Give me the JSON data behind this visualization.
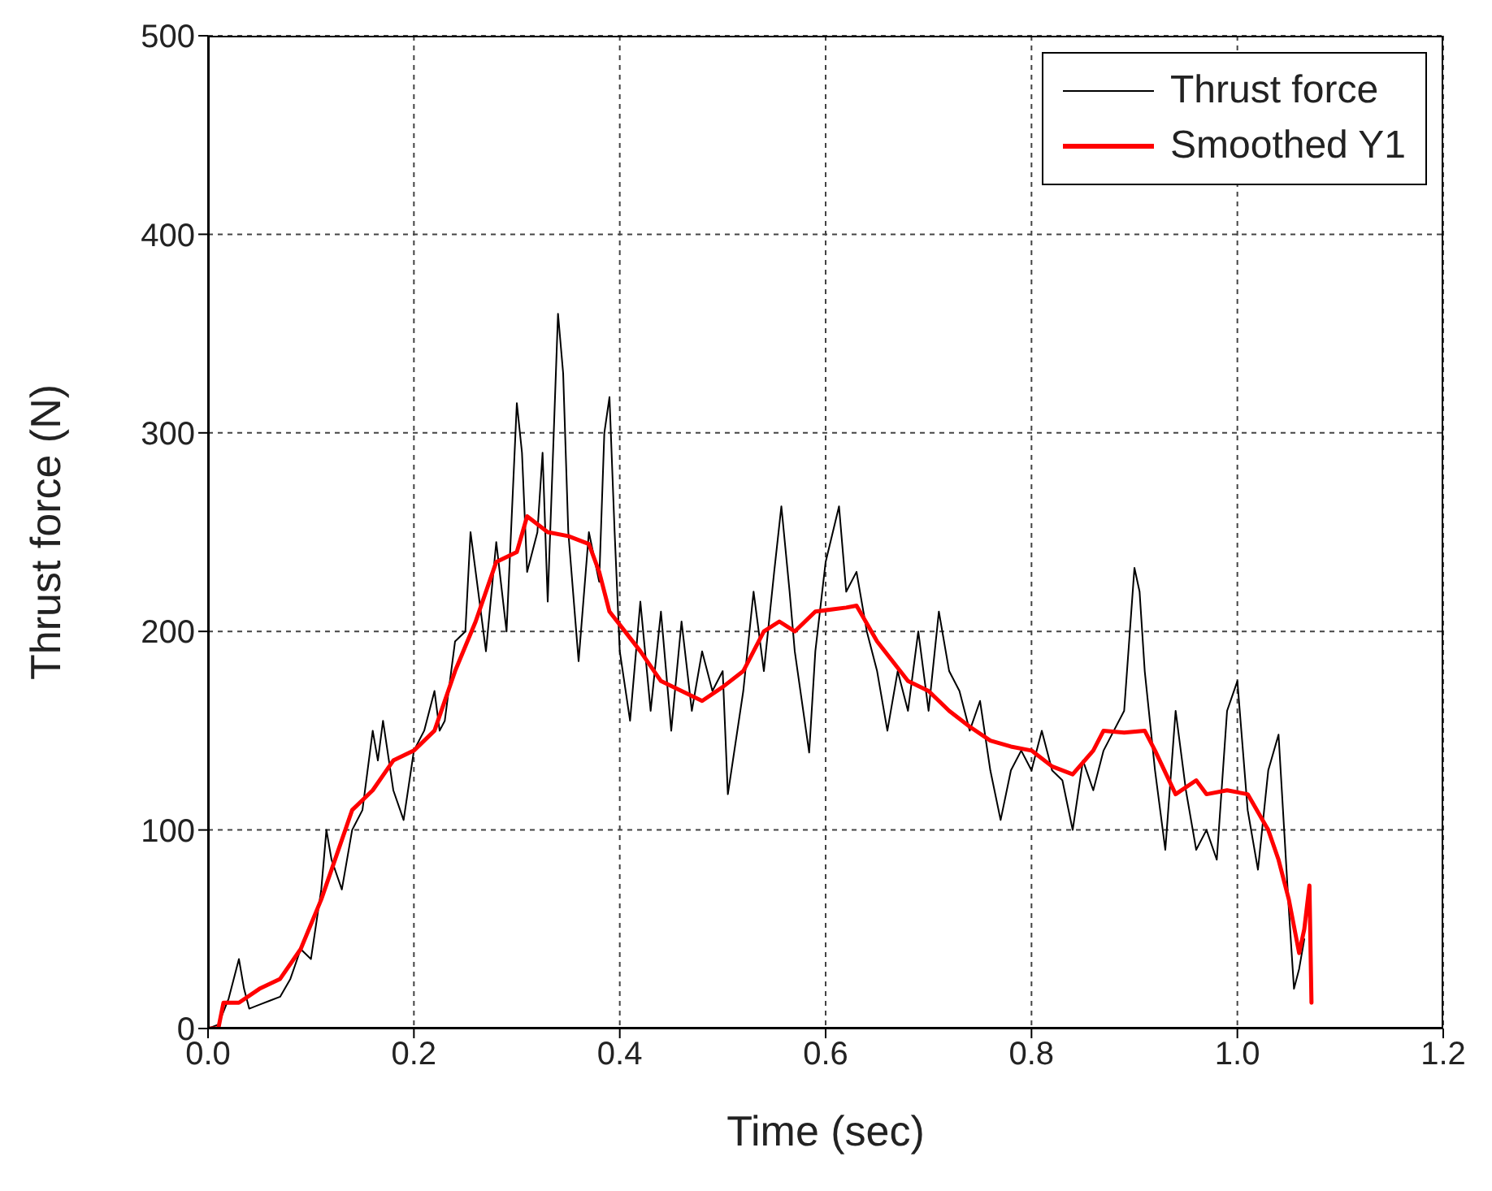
{
  "chart_data": {
    "type": "line",
    "xlabel": "Time (sec)",
    "ylabel": "Thrust force (N)",
    "xlim": [
      0,
      1.2
    ],
    "xticks": [
      {
        "value": 0,
        "label": "0.0"
      },
      {
        "value": 0.2,
        "label": "0.2"
      },
      {
        "value": 0.4,
        "label": "0.4"
      },
      {
        "value": 0.6,
        "label": "0.6"
      },
      {
        "value": 0.8,
        "label": "0.8"
      },
      {
        "value": 1,
        "label": "1.0"
      },
      {
        "value": 1.2,
        "label": "1.2"
      }
    ],
    "ylim": [
      0,
      500
    ],
    "yticks": [
      0,
      100,
      200,
      300,
      400,
      500
    ],
    "grid": true,
    "legend": "top right",
    "marker": "none",
    "line_style": "solid",
    "series": [
      {
        "name": "Thrust force",
        "color": "#000000",
        "x": [
          0,
          0.01,
          0.02,
          0.03,
          0.035,
          0.04,
          0.05,
          0.06,
          0.07,
          0.08,
          0.09,
          0.1,
          0.11,
          0.115,
          0.12,
          0.13,
          0.14,
          0.15,
          0.16,
          0.165,
          0.17,
          0.18,
          0.19,
          0.2,
          0.21,
          0.22,
          0.225,
          0.23,
          0.24,
          0.25,
          0.255,
          0.26,
          0.27,
          0.28,
          0.29,
          0.3,
          0.305,
          0.31,
          0.32,
          0.325,
          0.33,
          0.34,
          0.345,
          0.35,
          0.36,
          0.37,
          0.38,
          0.385,
          0.39,
          0.395,
          0.4,
          0.41,
          0.42,
          0.43,
          0.44,
          0.45,
          0.46,
          0.47,
          0.48,
          0.49,
          0.5,
          0.505,
          0.52,
          0.53,
          0.54,
          0.55,
          0.557,
          0.565,
          0.57,
          0.584,
          0.59,
          0.6,
          0.613,
          0.62,
          0.63,
          0.64,
          0.65,
          0.66,
          0.67,
          0.68,
          0.69,
          0.7,
          0.71,
          0.72,
          0.73,
          0.74,
          0.75,
          0.76,
          0.77,
          0.78,
          0.79,
          0.8,
          0.81,
          0.82,
          0.83,
          0.84,
          0.85,
          0.86,
          0.87,
          0.88,
          0.89,
          0.9,
          0.905,
          0.91,
          0.92,
          0.93,
          0.94,
          0.95,
          0.96,
          0.97,
          0.98,
          0.99,
          1,
          1.01,
          1.02,
          1.03,
          1.04,
          1.05,
          1.055,
          1.06,
          1.065
        ],
        "values": [
          0,
          2,
          15,
          35,
          20,
          10,
          12,
          14,
          16,
          25,
          40,
          35,
          70,
          100,
          85,
          70,
          100,
          110,
          150,
          135,
          155,
          120,
          105,
          140,
          150,
          170,
          150,
          155,
          195,
          200,
          250,
          230,
          190,
          245,
          200,
          315,
          290,
          230,
          250,
          290,
          215,
          360,
          330,
          250,
          185,
          250,
          225,
          300,
          318,
          250,
          190,
          155,
          215,
          160,
          210,
          150,
          205,
          160,
          190,
          170,
          180,
          118,
          170,
          220,
          180,
          230,
          263,
          220,
          190,
          139,
          190,
          235,
          263,
          220,
          230,
          200,
          180,
          150,
          180,
          160,
          200,
          160,
          210,
          180,
          170,
          150,
          165,
          130,
          105,
          130,
          140,
          130,
          150,
          130,
          125,
          100,
          135,
          120,
          140,
          150,
          160,
          232,
          220,
          180,
          130,
          90,
          160,
          120,
          90,
          100,
          85,
          160,
          175,
          110,
          80,
          130,
          148,
          60,
          20,
          30,
          45
        ]
      },
      {
        "name": "Smoothed Y1",
        "color": "#ff0000",
        "x": [
          0,
          0.01,
          0.015,
          0.03,
          0.05,
          0.07,
          0.09,
          0.11,
          0.13,
          0.14,
          0.16,
          0.18,
          0.2,
          0.22,
          0.24,
          0.26,
          0.28,
          0.3,
          0.31,
          0.33,
          0.35,
          0.37,
          0.38,
          0.39,
          0.42,
          0.44,
          0.46,
          0.48,
          0.5,
          0.52,
          0.54,
          0.555,
          0.57,
          0.59,
          0.62,
          0.63,
          0.65,
          0.68,
          0.7,
          0.72,
          0.74,
          0.76,
          0.78,
          0.8,
          0.82,
          0.84,
          0.86,
          0.87,
          0.89,
          0.91,
          0.92,
          0.94,
          0.96,
          0.97,
          0.99,
          1.01,
          1.03,
          1.04,
          1.05,
          1.06,
          1.065,
          1.07,
          1.072
        ],
        "values": [
          0,
          0,
          13,
          13,
          20,
          25,
          40,
          65,
          95,
          110,
          120,
          135,
          140,
          150,
          180,
          205,
          235,
          240,
          258,
          250,
          248,
          244,
          230,
          210,
          190,
          175,
          170,
          165,
          172,
          180,
          200,
          205,
          200,
          210,
          212,
          213,
          195,
          175,
          170,
          160,
          152,
          145,
          142,
          140,
          132,
          128,
          140,
          150,
          149,
          150,
          140,
          118,
          125,
          118,
          120,
          118,
          100,
          85,
          65,
          38,
          50,
          72,
          13
        ]
      }
    ]
  }
}
